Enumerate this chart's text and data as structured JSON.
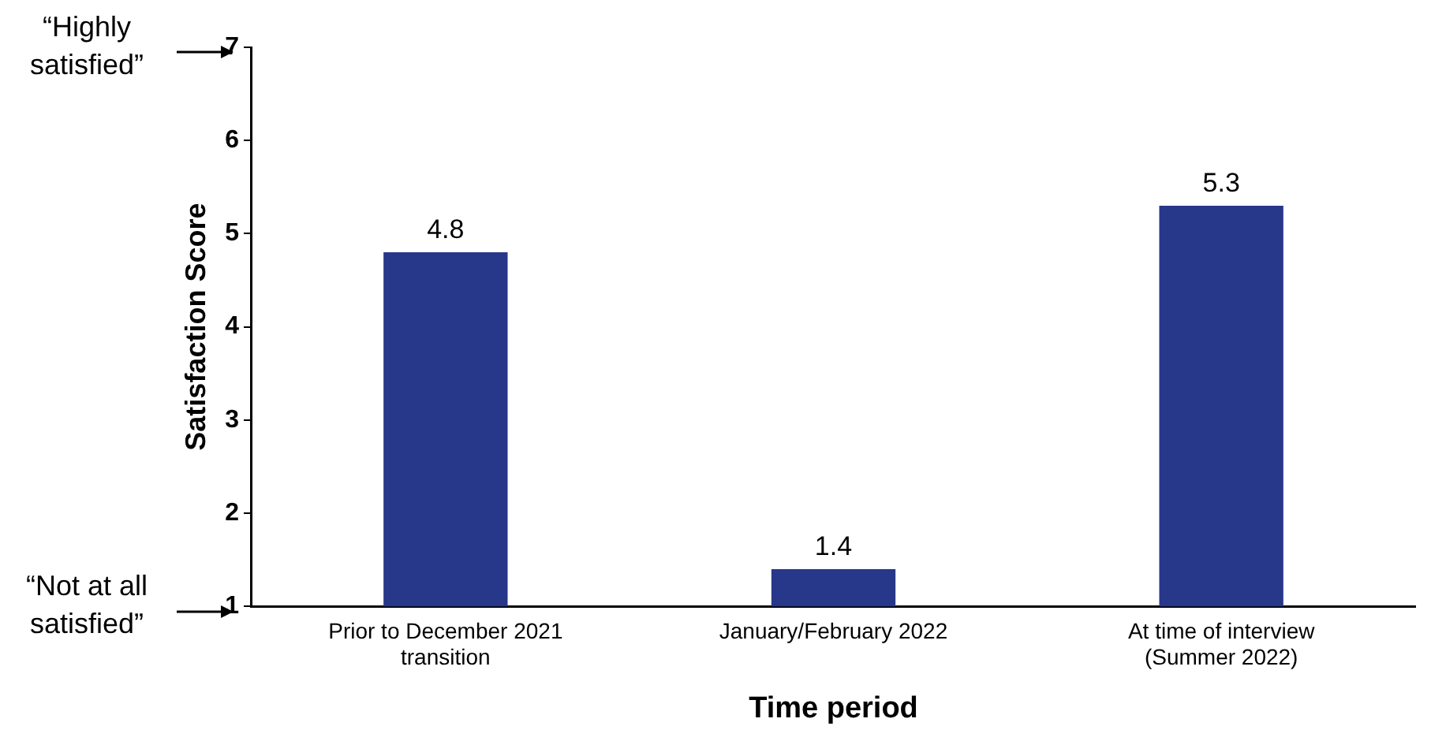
{
  "chart_data": {
    "type": "bar",
    "xlabel": "Time period",
    "ylabel": "Satisfaction Score",
    "categories": [
      "Prior to December 2021 transition",
      "January/February 2022",
      "At time of interview (Summer 2022)"
    ],
    "values": [
      4.8,
      1.4,
      5.3
    ],
    "color": "#27378a",
    "ylim": [
      1,
      7
    ],
    "yticks": [
      1,
      2,
      3,
      4,
      5,
      6,
      7
    ],
    "grid": false,
    "legend": false,
    "data_labels": true,
    "annotations": [
      "“Highly satisfied”",
      "“Not at all satisfied”"
    ]
  }
}
